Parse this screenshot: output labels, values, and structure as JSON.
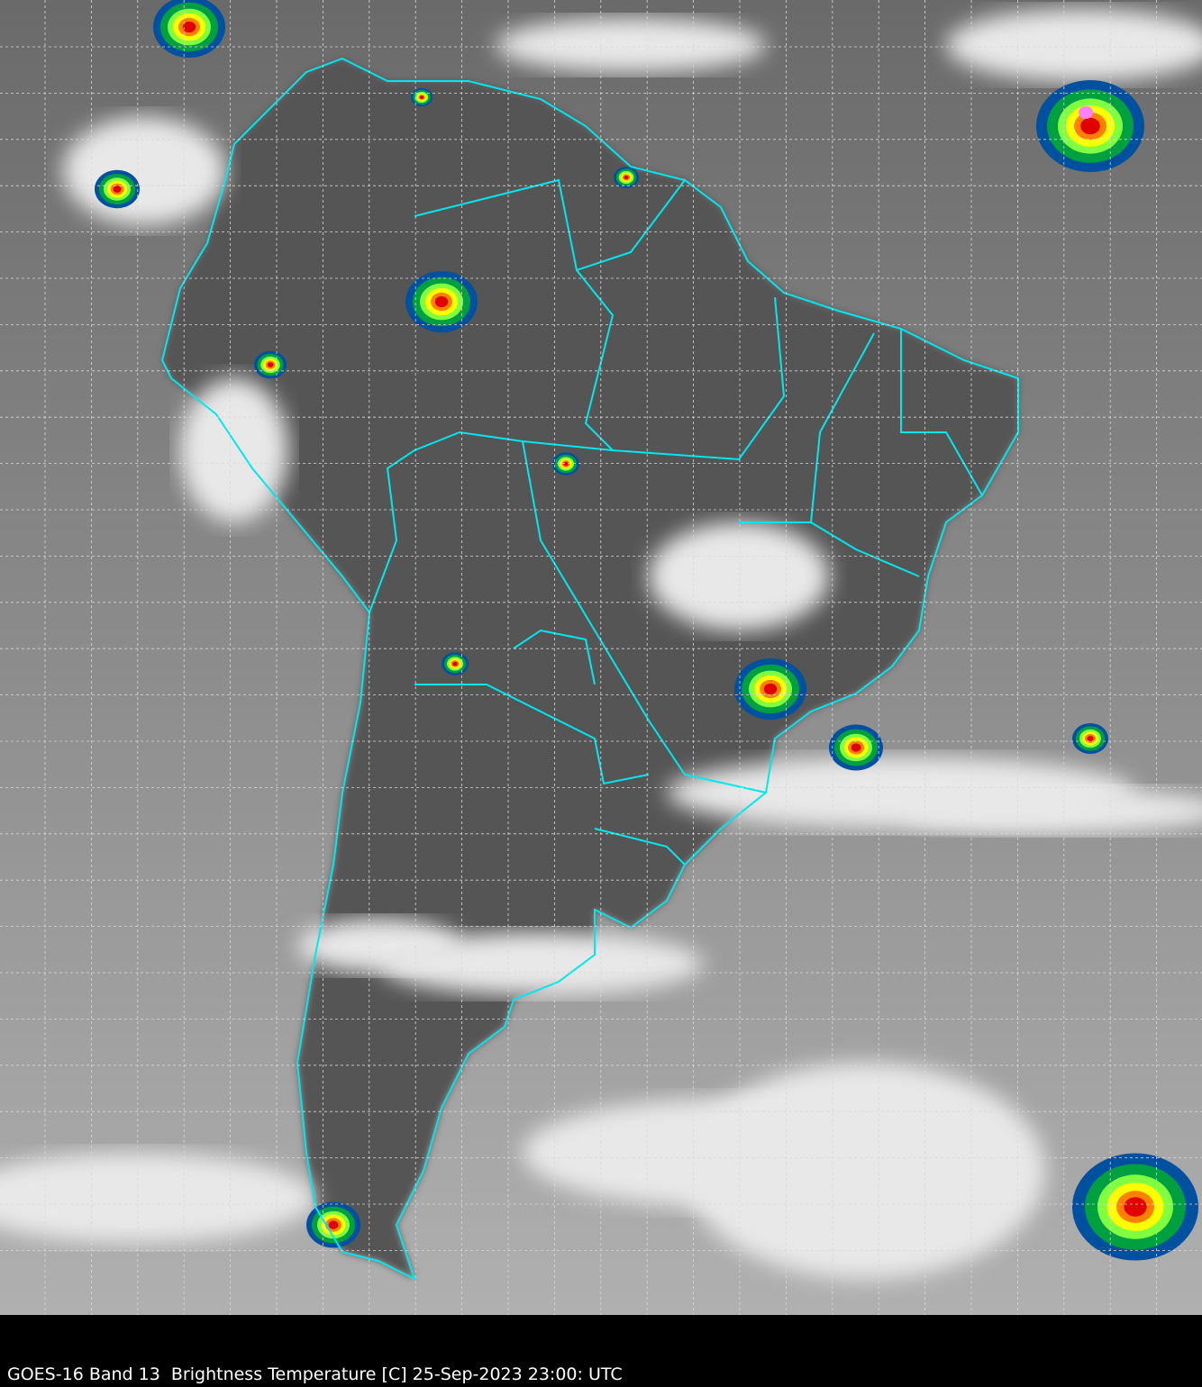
{
  "caption": "GOES-16 Band 13  Brightness Temperature [C] 25-Sep-2023 23:00: UTC",
  "colors": {
    "background": "#000000",
    "ocean_gray": "#8a8a8a",
    "land_gray": "#4f4f4f",
    "border_line": "#00e8ef",
    "grid_line": "#d8d8d8",
    "cold_cloud_scale": [
      "#ffffff",
      "#40d8f0",
      "#0050a0",
      "#001a60",
      "#00a040",
      "#80ff40",
      "#ffff00",
      "#ff8000",
      "#e00000",
      "#400000",
      "#ff80ff"
    ]
  }
}
